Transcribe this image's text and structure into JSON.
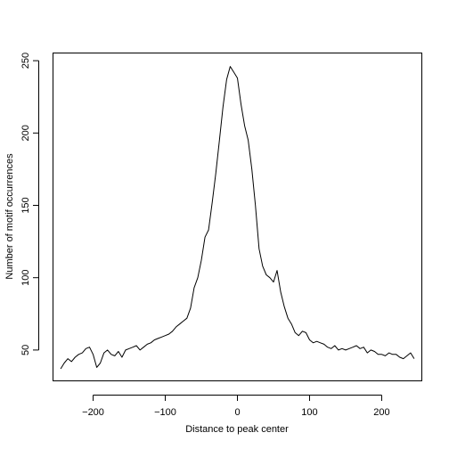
{
  "chart_data": {
    "type": "line",
    "title": "",
    "xlabel": "Distance to peak center",
    "ylabel": "Number of motif occurrences",
    "xlim": [
      -255,
      255
    ],
    "ylim": [
      29,
      255
    ],
    "x_ticks": [
      -200,
      -100,
      0,
      100,
      200
    ],
    "y_ticks": [
      50,
      100,
      150,
      200,
      250
    ],
    "x_tick_labels": [
      "−200",
      "−100",
      "0",
      "100",
      "200"
    ],
    "y_tick_labels": [
      "50",
      "100",
      "150",
      "200",
      "250"
    ],
    "grid": false,
    "legend": "none",
    "series": [
      {
        "x": [
          -245,
          -240,
          -235,
          -230,
          -225,
          -220,
          -215,
          -210,
          -205,
          -200,
          -195,
          -190,
          -185,
          -180,
          -175,
          -170,
          -165,
          -160,
          -155,
          -150,
          -145,
          -140,
          -135,
          -130,
          -125,
          -120,
          -115,
          -110,
          -105,
          -100,
          -95,
          -90,
          -85,
          -80,
          -75,
          -70,
          -65,
          -60,
          -55,
          -50,
          -45,
          -40,
          -35,
          -30,
          -25,
          -20,
          -15,
          -10,
          -5,
          0,
          5,
          10,
          15,
          20,
          25,
          30,
          35,
          40,
          45,
          50,
          55,
          60,
          65,
          70,
          75,
          80,
          85,
          90,
          95,
          100,
          105,
          110,
          115,
          120,
          125,
          130,
          135,
          140,
          145,
          150,
          155,
          160,
          165,
          170,
          175,
          180,
          185,
          190,
          195,
          200,
          205,
          210,
          215,
          220,
          225,
          230,
          235,
          240,
          245
        ],
        "values": [
          37,
          41,
          44,
          42,
          45,
          47,
          48,
          51,
          52,
          47,
          38,
          41,
          48,
          50,
          47,
          46,
          49,
          45,
          50,
          51,
          52,
          53,
          50,
          52,
          54,
          55,
          57,
          58,
          59,
          60,
          61,
          63,
          66,
          68,
          70,
          72,
          79,
          93,
          100,
          112,
          128,
          133,
          152,
          172,
          195,
          218,
          237,
          246,
          242,
          238,
          220,
          205,
          195,
          175,
          150,
          120,
          108,
          102,
          100,
          97,
          105,
          90,
          80,
          72,
          68,
          62,
          60,
          63,
          62,
          57,
          55,
          56,
          55,
          54,
          52,
          51,
          53,
          50,
          51,
          50,
          51,
          52,
          53,
          51,
          52,
          48,
          50,
          49,
          47,
          47,
          46,
          48,
          47,
          47,
          45,
          44,
          46,
          48,
          44
        ]
      }
    ]
  }
}
